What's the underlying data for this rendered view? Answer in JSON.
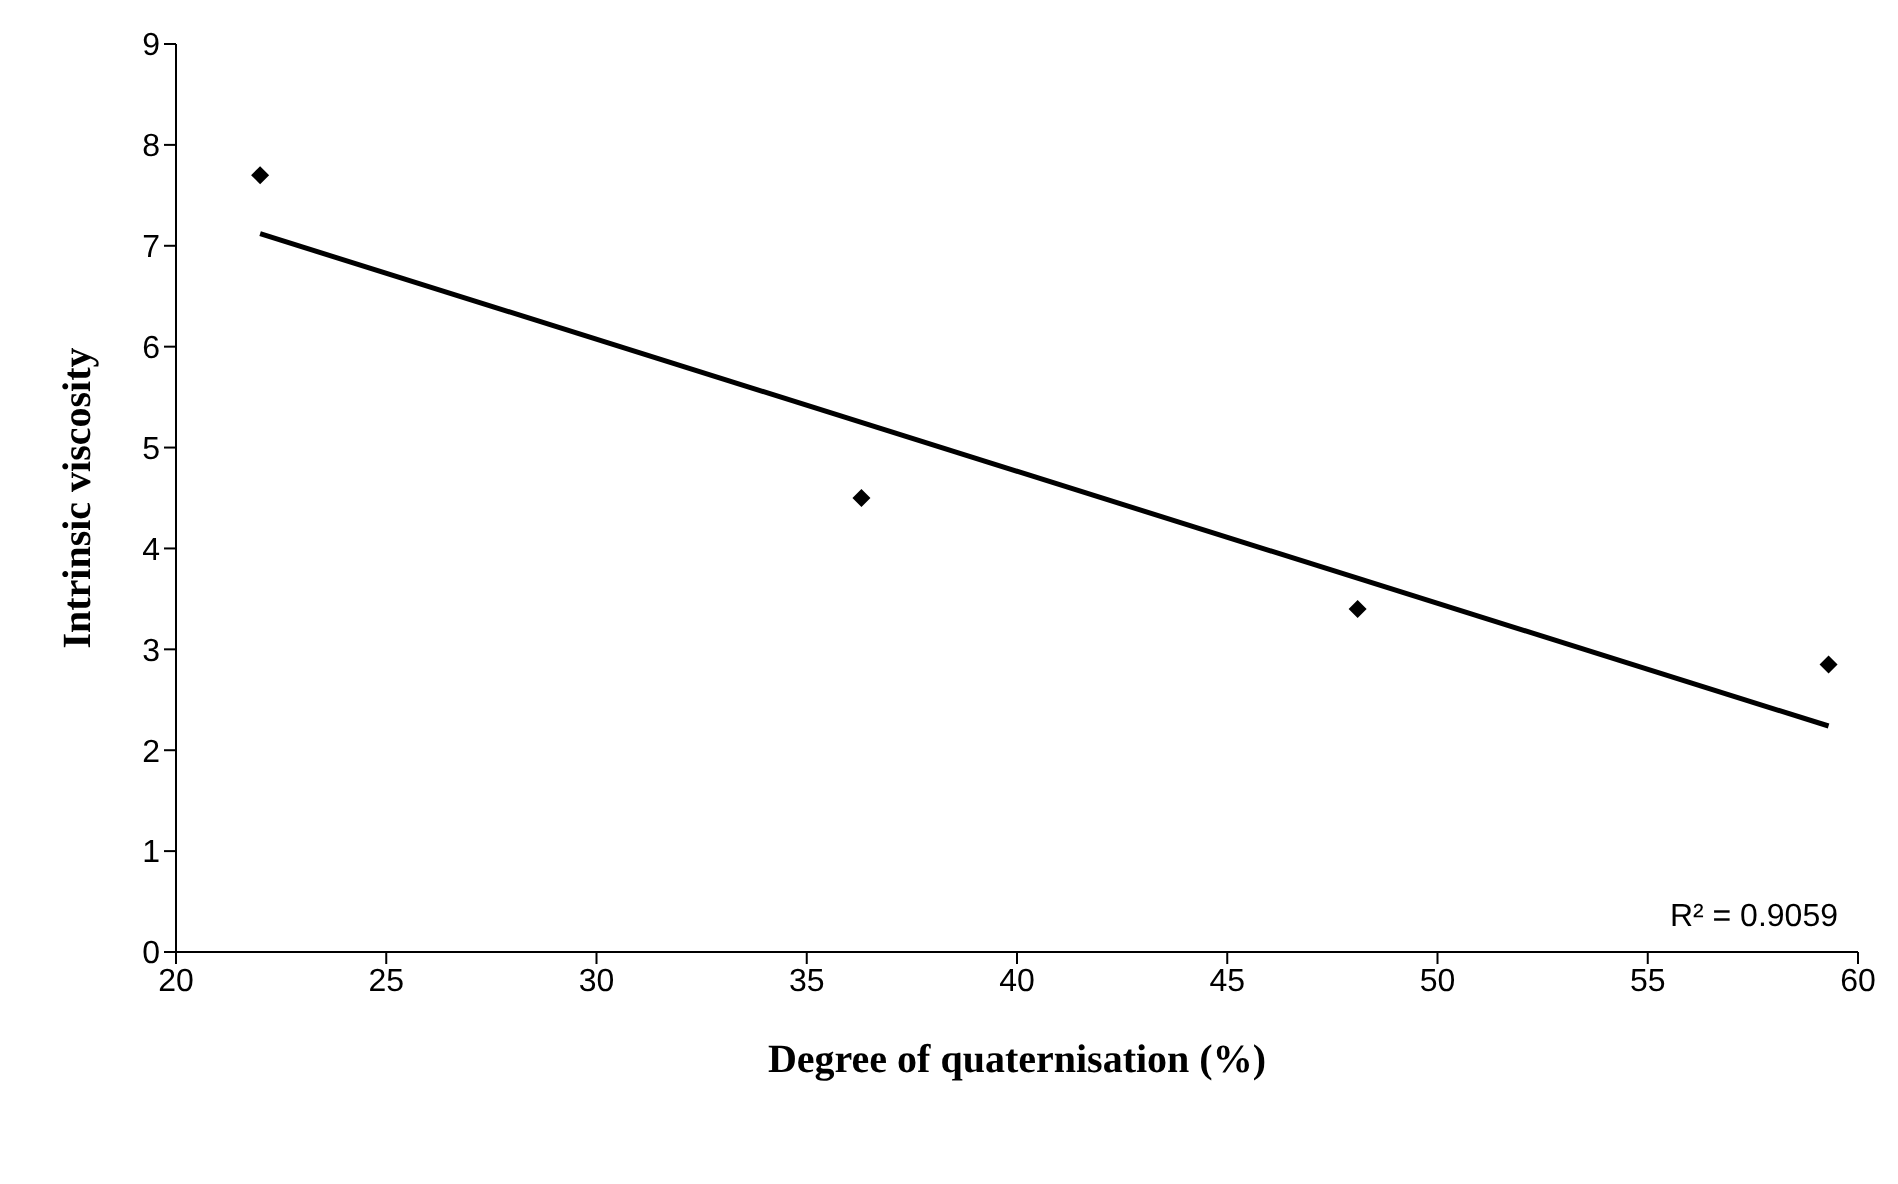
{
  "chart_data": {
    "type": "scatter",
    "xlabel": "Degree of quaternisation (%)",
    "ylabel": "Intrinsic viscosity",
    "series": [
      {
        "type": "scatter",
        "color": "#000000",
        "marker": "diamond",
        "x": [
          22.0,
          36.3,
          48.1,
          59.3
        ],
        "values": [
          7.7,
          4.5,
          3.4,
          2.85
        ]
      },
      {
        "type": "line",
        "color": "#000000",
        "marker": "none",
        "x": [
          22.0,
          59.3
        ],
        "values": [
          7.12,
          2.24
        ]
      }
    ],
    "xlim": [
      20,
      60
    ],
    "xticks": [
      20,
      25,
      30,
      35,
      40,
      45,
      50,
      55,
      60
    ],
    "ylim": [
      0,
      9
    ],
    "yticks": [
      0,
      1,
      2,
      3,
      4,
      5,
      6,
      7,
      8,
      9
    ],
    "grid": false,
    "legend": false,
    "annotations": [
      "R² = 0.9059"
    ]
  }
}
